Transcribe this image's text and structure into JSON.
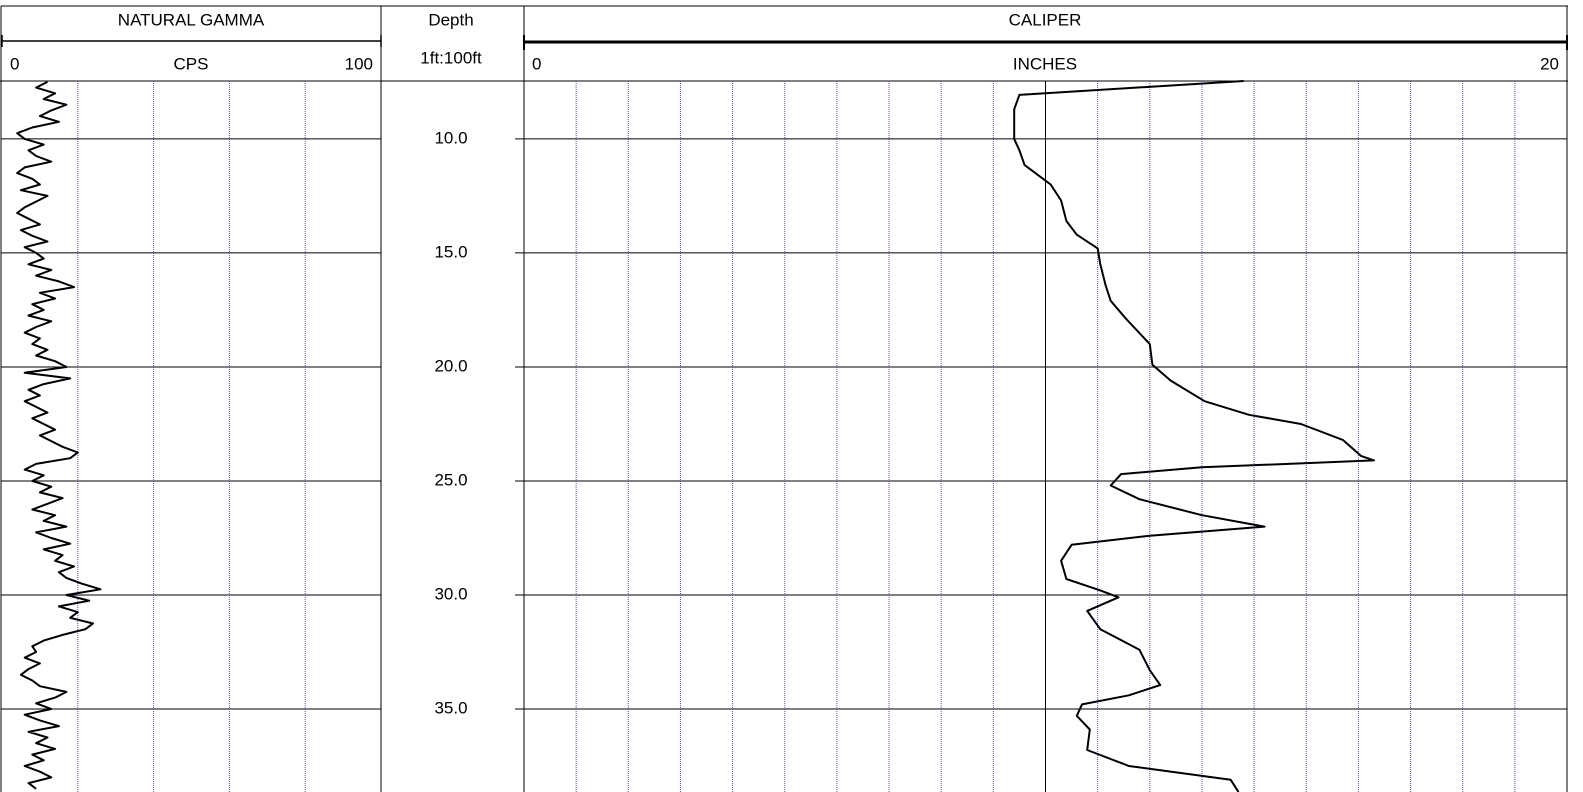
{
  "chart_data": [
    {
      "type": "line",
      "title": "NATURAL GAMMA",
      "xlabel": "CPS",
      "xlim": [
        0,
        100
      ],
      "xticks": [
        0,
        100
      ],
      "xgrid": [
        20,
        40,
        60,
        80
      ],
      "color": "#000000",
      "depth": [
        7.5,
        7.75,
        8,
        8.25,
        8.5,
        8.75,
        9,
        9.25,
        9.5,
        9.75,
        10,
        10.25,
        10.5,
        10.75,
        11,
        11.25,
        11.5,
        11.75,
        12,
        12.25,
        12.5,
        12.75,
        13,
        13.25,
        13.5,
        13.75,
        14,
        14.25,
        14.5,
        14.75,
        15,
        15.25,
        15.5,
        15.75,
        16,
        16.25,
        16.5,
        16.75,
        17,
        17.25,
        17.5,
        17.75,
        18,
        18.25,
        18.5,
        18.75,
        19,
        19.25,
        19.5,
        19.75,
        20,
        20.25,
        20.5,
        20.75,
        21,
        21.25,
        21.5,
        21.75,
        22,
        22.25,
        22.5,
        22.75,
        23,
        23.25,
        23.5,
        23.75,
        24,
        24.25,
        24.5,
        24.75,
        25,
        25.25,
        25.5,
        25.75,
        26,
        26.25,
        26.5,
        26.75,
        27,
        27.25,
        27.5,
        27.75,
        28,
        28.25,
        28.5,
        28.75,
        29,
        29.25,
        29.5,
        29.75,
        30,
        30.25,
        30.5,
        30.75,
        31,
        31.25,
        31.5,
        31.75,
        32,
        32.25,
        32.5,
        32.75,
        33,
        33.25,
        33.5,
        33.75,
        34,
        34.25,
        34.5,
        34.75,
        35,
        35.25,
        35.5,
        35.75,
        36,
        36.25,
        36.5,
        36.75,
        37,
        37.25,
        37.5,
        37.75,
        38,
        38.25,
        38.5
      ],
      "values": [
        12,
        9,
        14,
        11,
        17,
        13,
        10,
        15,
        8,
        4,
        6,
        11,
        7,
        9,
        13,
        6,
        4,
        8,
        10,
        5,
        12,
        9,
        6,
        4,
        7,
        10,
        5,
        8,
        12,
        6,
        9,
        11,
        7,
        13,
        9,
        15,
        19,
        10,
        14,
        8,
        11,
        7,
        13,
        9,
        6,
        10,
        8,
        12,
        9,
        14,
        17,
        6,
        18,
        11,
        7,
        10,
        6,
        9,
        12,
        8,
        11,
        14,
        10,
        13,
        16,
        20,
        18,
        9,
        6,
        11,
        8,
        13,
        10,
        16,
        12,
        8,
        14,
        11,
        17,
        9,
        13,
        18,
        11,
        16,
        14,
        19,
        15,
        17,
        21,
        26,
        17,
        23,
        15,
        20,
        18,
        24,
        22,
        16,
        11,
        8,
        9,
        6,
        10,
        7,
        5,
        8,
        10,
        17,
        14,
        9,
        13,
        6,
        10,
        15,
        7,
        12,
        9,
        14,
        8,
        11,
        6,
        10,
        13,
        7,
        9
      ]
    },
    {
      "type": "depth",
      "title": "Depth",
      "subtitle": "1ft:100ft",
      "ylim": [
        7.46,
        38.64
      ],
      "yticks": [
        {
          "value": 10,
          "label": "10.0"
        },
        {
          "value": 15,
          "label": "15.0"
        },
        {
          "value": 20,
          "label": "20.0"
        },
        {
          "value": 25,
          "label": "25.0"
        },
        {
          "value": 30,
          "label": "30.0"
        },
        {
          "value": 35,
          "label": "35.0"
        }
      ]
    },
    {
      "type": "line",
      "title": "CALIPER",
      "xlabel": "INCHES",
      "xlim": [
        0,
        20
      ],
      "xticks": [
        0,
        20
      ],
      "xgrid": [
        1,
        2,
        3,
        4,
        5,
        6,
        7,
        8,
        9,
        11,
        12,
        13,
        14,
        15,
        16,
        17,
        18,
        19
      ],
      "xmajor": [
        10
      ],
      "color": "#000000",
      "depth": [
        7.46,
        8.07,
        8.7,
        10,
        10.5,
        11.15,
        12,
        12.7,
        13.6,
        14.2,
        14.8,
        15.5,
        16.4,
        17.1,
        17.9,
        19,
        19.9,
        20.6,
        21.5,
        22.1,
        22.5,
        23.2,
        23.9,
        24.1,
        24.4,
        24.7,
        25.2,
        25.8,
        26.5,
        27,
        27.4,
        27.8,
        28.5,
        29.3,
        29.8,
        30.1,
        30.7,
        31.5,
        32.4,
        33.3,
        33.95,
        34.4,
        34.8,
        35.3,
        35.9,
        36.8,
        37.5,
        38.1,
        38.64
      ],
      "values": [
        13.8,
        9.5,
        9.4,
        9.4,
        9.5,
        9.6,
        10.1,
        10.3,
        10.4,
        10.6,
        11,
        11.05,
        11.15,
        11.25,
        11.55,
        12,
        12.05,
        12.4,
        13.05,
        13.9,
        14.9,
        15.7,
        16.05,
        16.3,
        13,
        11.45,
        11.25,
        11.8,
        13,
        14.2,
        12,
        10.5,
        10.3,
        10.4,
        11.05,
        11.4,
        10.8,
        11.05,
        11.8,
        12,
        12.2,
        11.6,
        10.7,
        10.6,
        10.85,
        10.8,
        11.6,
        13.55,
        13.7
      ]
    }
  ]
}
